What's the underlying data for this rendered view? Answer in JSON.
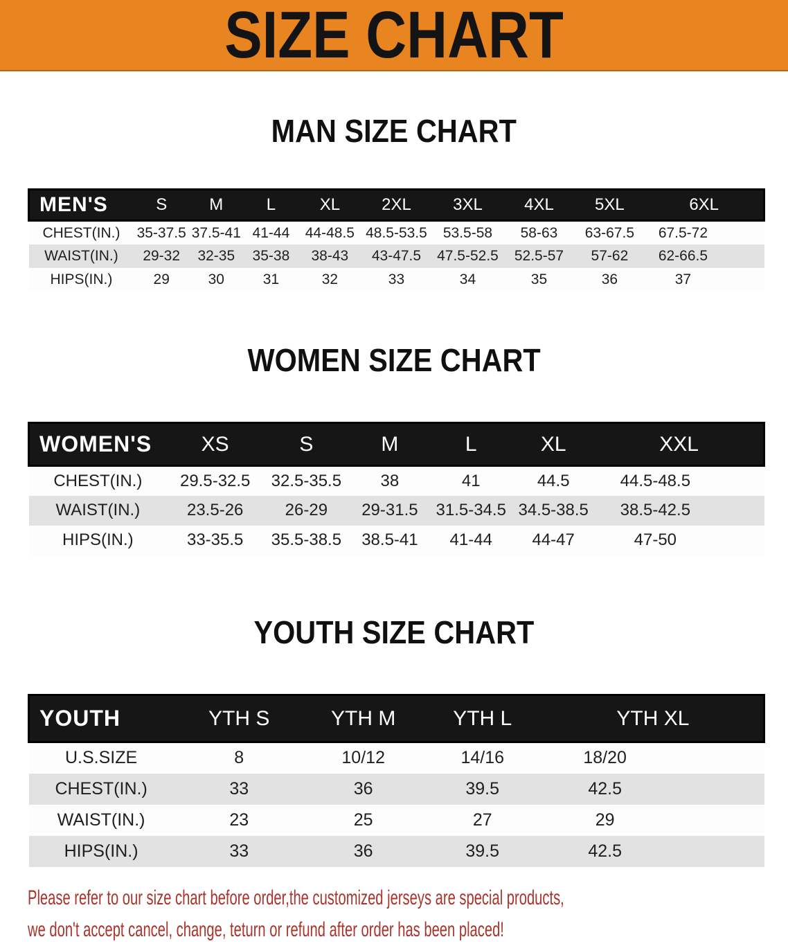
{
  "banner": {
    "title": "SIZE CHART"
  },
  "colors": {
    "banner_bg": "#E88520",
    "header_bar": "#161616",
    "row_stripe": "#E2E2E2",
    "notice_text": "#A8342B"
  },
  "tables": [
    {
      "title": "MAN SIZE CHART",
      "header_label": "MEN'S",
      "columns": [
        "S",
        "M",
        "L",
        "XL",
        "2XL",
        "3XL",
        "4XL",
        "5XL",
        "6XL"
      ],
      "rows": [
        {
          "label": "CHEST(IN.)",
          "values": [
            "35-37.5",
            "37.5-41",
            "41-44",
            "44-48.5",
            "48.5-53.5",
            "53.5-58",
            "58-63",
            "63-67.5",
            "67.5-72"
          ]
        },
        {
          "label": "WAIST(IN.)",
          "values": [
            "29-32",
            "32-35",
            "35-38",
            "38-43",
            "43-47.5",
            "47.5-52.5",
            "52.5-57",
            "57-62",
            "62-66.5"
          ]
        },
        {
          "label": "HIPS(IN.)",
          "values": [
            "29",
            "30",
            "31",
            "32",
            "33",
            "34",
            "35",
            "36",
            "37"
          ]
        }
      ]
    },
    {
      "title": "WOMEN SIZE CHART",
      "header_label": "WOMEN'S",
      "columns": [
        "XS",
        "S",
        "M",
        "L",
        "XL",
        "XXL"
      ],
      "rows": [
        {
          "label": "CHEST(IN.)",
          "values": [
            "29.5-32.5",
            "32.5-35.5",
            "38",
            "41",
            "44.5",
            "44.5-48.5"
          ]
        },
        {
          "label": "WAIST(IN.)",
          "values": [
            "23.5-26",
            "26-29",
            "29-31.5",
            "31.5-34.5",
            "34.5-38.5",
            "38.5-42.5"
          ]
        },
        {
          "label": "HIPS(IN.)",
          "values": [
            "33-35.5",
            "35.5-38.5",
            "38.5-41",
            "41-44",
            "44-47",
            "47-50"
          ]
        }
      ]
    },
    {
      "title": "YOUTH SIZE CHART",
      "header_label": "YOUTH",
      "columns": [
        "YTH S",
        "YTH M",
        "YTH L",
        "YTH XL"
      ],
      "rows": [
        {
          "label": "U.S.SIZE",
          "values": [
            "8",
            "10/12",
            "14/16",
            "18/20"
          ]
        },
        {
          "label": "CHEST(IN.)",
          "values": [
            "33",
            "36",
            "39.5",
            "42.5"
          ]
        },
        {
          "label": "WAIST(IN.)",
          "values": [
            "23",
            "25",
            "27",
            "29"
          ]
        },
        {
          "label": "HIPS(IN.)",
          "values": [
            "33",
            "36",
            "39.5",
            "42.5"
          ]
        }
      ]
    }
  ],
  "footer": {
    "line1": "Please refer to our size chart before order,the customized jerseys are special products,",
    "line2": "we don't accept cancel, change, teturn or refund after order has been placed!"
  }
}
